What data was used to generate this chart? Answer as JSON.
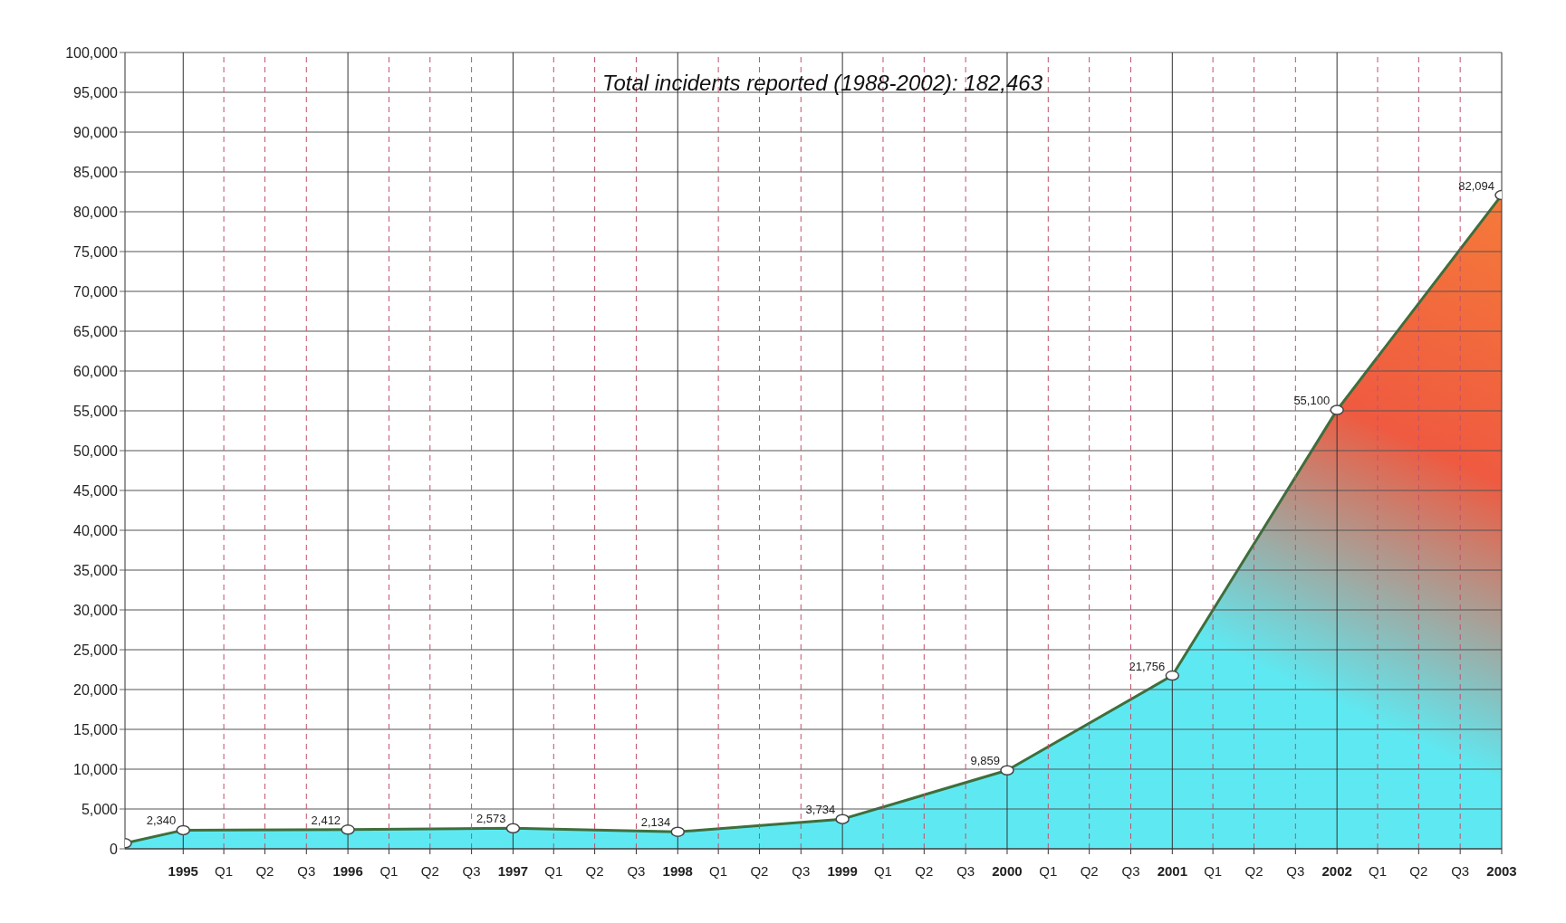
{
  "chart_data": {
    "type": "area",
    "annotations": [
      "Total incidents reported (1988-2002): 182,463"
    ],
    "x": [
      "1994-08-25",
      "1995",
      "1996",
      "1997",
      "1998",
      "1999",
      "2000",
      "2001",
      "2002",
      "2003"
    ],
    "series": [
      {
        "color": "#3f6e3c",
        "values": [
          700,
          2340,
          2412,
          2573,
          2134,
          3734,
          9859,
          21756,
          55100,
          82094
        ],
        "value_labels": [
          null,
          "2,340",
          "2,412",
          "2,573",
          "2,134",
          "3,734",
          "9,859",
          "21,756",
          "55,100",
          "82,094"
        ]
      }
    ],
    "xlim": [
      "1994-08-25",
      "2003"
    ],
    "xticks": [
      "1995",
      {
        "value": "1995-04",
        "label": "Q1"
      },
      {
        "value": "1995-07",
        "label": "Q2"
      },
      {
        "value": "1995-10",
        "label": "Q3"
      },
      "1996",
      {
        "value": "1996-04",
        "label": "Q1"
      },
      {
        "value": "1996-07",
        "label": "Q2"
      },
      {
        "value": "1996-10",
        "label": "Q3"
      },
      "1997",
      {
        "value": "1997-04",
        "label": "Q1"
      },
      {
        "value": "1997-07",
        "label": "Q2"
      },
      {
        "value": "1997-10",
        "label": "Q3"
      },
      "1998",
      {
        "value": "1998-04",
        "label": "Q1"
      },
      {
        "value": "1998-07",
        "label": "Q2"
      },
      {
        "value": "1998-10",
        "label": "Q3"
      },
      "1999",
      {
        "value": "1999-04",
        "label": "Q1"
      },
      {
        "value": "1999-07",
        "label": "Q2"
      },
      {
        "value": "1999-10",
        "label": "Q3"
      },
      "2000",
      {
        "value": "2000-04",
        "label": "Q1"
      },
      {
        "value": "2000-07",
        "label": "Q2"
      },
      {
        "value": "2000-10",
        "label": "Q3"
      },
      "2001",
      {
        "value": "2001-04",
        "label": "Q1"
      },
      {
        "value": "2001-07",
        "label": "Q2"
      },
      {
        "value": "2001-10",
        "label": "Q3"
      },
      "2002",
      {
        "value": "2002-04",
        "label": "Q1"
      },
      {
        "value": "2002-07",
        "label": "Q2"
      },
      {
        "value": "2002-10",
        "label": "Q3"
      },
      "2003"
    ],
    "ylim": [
      0,
      100000
    ],
    "yticks": [
      0,
      {
        "value": 5000,
        "label": "5,000"
      },
      {
        "value": 10000,
        "label": "10,000"
      },
      {
        "value": 15000,
        "label": "15,000"
      },
      {
        "value": 20000,
        "label": "20,000"
      },
      {
        "value": 25000,
        "label": "25,000"
      },
      {
        "value": 30000,
        "label": "30,000"
      },
      {
        "value": 35000,
        "label": "35,000"
      },
      {
        "value": 40000,
        "label": "40,000"
      },
      {
        "value": 45000,
        "label": "45,000"
      },
      {
        "value": 50000,
        "label": "50,000"
      },
      {
        "value": 55000,
        "label": "55,000"
      },
      {
        "value": 60000,
        "label": "60,000"
      },
      {
        "value": 65000,
        "label": "65,000"
      },
      {
        "value": 70000,
        "label": "70,000"
      },
      {
        "value": 75000,
        "label": "75,000"
      },
      {
        "value": 80000,
        "label": "80,000"
      },
      {
        "value": 85000,
        "label": "85,000"
      },
      {
        "value": 90000,
        "label": "90,000"
      },
      {
        "value": 95000,
        "label": "95,000"
      },
      {
        "value": 100000,
        "label": "100,000"
      }
    ],
    "grid": true,
    "marker": "circle"
  }
}
